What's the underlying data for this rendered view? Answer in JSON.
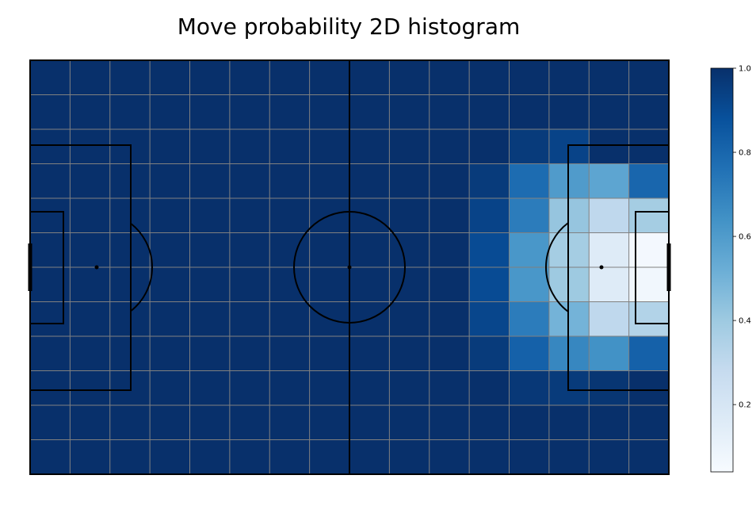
{
  "chart_data": {
    "type": "heatmap",
    "title": "Move probability 2D histogram",
    "xlabel": "",
    "ylabel": "",
    "grid": true,
    "colormap": "Blues",
    "colormap_stops": [
      "#f7fbff",
      "#deebf7",
      "#c6dbef",
      "#9ecae1",
      "#6baed6",
      "#4292c6",
      "#2171b5",
      "#08519c",
      "#08306b"
    ],
    "value_range": [
      0.04,
      1.0
    ],
    "x_bins": 16,
    "y_bins": 12,
    "values": [
      [
        1.0,
        1.0,
        1.0,
        1.0,
        1.0,
        1.0,
        1.0,
        1.0,
        1.0,
        1.0,
        1.0,
        1.0,
        1.0,
        1.0,
        1.0,
        1.0
      ],
      [
        1.0,
        1.0,
        1.0,
        1.0,
        1.0,
        1.0,
        1.0,
        1.0,
        1.0,
        1.0,
        1.0,
        1.0,
        1.0,
        1.0,
        1.0,
        1.0
      ],
      [
        1.0,
        1.0,
        1.0,
        1.0,
        1.0,
        1.0,
        1.0,
        1.0,
        1.0,
        1.0,
        1.0,
        1.0,
        0.96,
        0.93,
        1.0,
        1.0
      ],
      [
        1.0,
        1.0,
        1.0,
        1.0,
        1.0,
        1.0,
        1.0,
        1.0,
        1.0,
        1.0,
        1.0,
        0.96,
        0.78,
        0.6,
        0.56,
        0.8
      ],
      [
        1.0,
        1.0,
        1.0,
        1.0,
        1.0,
        1.0,
        1.0,
        1.0,
        1.0,
        1.0,
        1.0,
        0.93,
        0.72,
        0.42,
        0.3,
        0.38
      ],
      [
        1.0,
        1.0,
        1.0,
        1.0,
        1.0,
        1.0,
        1.0,
        1.0,
        1.0,
        1.0,
        1.0,
        0.9,
        0.62,
        0.38,
        0.16,
        0.06
      ],
      [
        1.0,
        1.0,
        1.0,
        1.0,
        1.0,
        1.0,
        1.0,
        1.0,
        1.0,
        1.0,
        1.0,
        0.9,
        0.62,
        0.4,
        0.16,
        0.07
      ],
      [
        1.0,
        1.0,
        1.0,
        1.0,
        1.0,
        1.0,
        1.0,
        1.0,
        1.0,
        1.0,
        1.0,
        0.92,
        0.72,
        0.5,
        0.3,
        0.34
      ],
      [
        1.0,
        1.0,
        1.0,
        1.0,
        1.0,
        1.0,
        1.0,
        1.0,
        1.0,
        1.0,
        1.0,
        0.96,
        0.82,
        0.68,
        0.64,
        0.82
      ],
      [
        1.0,
        1.0,
        1.0,
        1.0,
        1.0,
        1.0,
        1.0,
        1.0,
        1.0,
        1.0,
        1.0,
        1.0,
        0.97,
        0.96,
        0.98,
        1.0
      ],
      [
        1.0,
        1.0,
        1.0,
        1.0,
        1.0,
        1.0,
        1.0,
        1.0,
        1.0,
        1.0,
        1.0,
        1.0,
        1.0,
        1.0,
        1.0,
        1.0
      ],
      [
        1.0,
        1.0,
        1.0,
        1.0,
        1.0,
        1.0,
        1.0,
        1.0,
        1.0,
        1.0,
        1.0,
        1.0,
        1.0,
        1.0,
        1.0,
        1.0
      ]
    ],
    "colorbar": {
      "ticks": [
        0.2,
        0.4,
        0.6,
        0.8,
        1.0
      ],
      "tick_labels": [
        "0.2",
        "0.4",
        "0.6",
        "0.8",
        "1.0"
      ]
    },
    "pitch": {
      "line_color": "#000000",
      "grid_color": "#808080",
      "markings": [
        "penalty-boxes",
        "six-yard-boxes",
        "goals",
        "penalty-spots",
        "penalty-arcs",
        "center-line",
        "center-circle",
        "center-spot"
      ]
    }
  }
}
